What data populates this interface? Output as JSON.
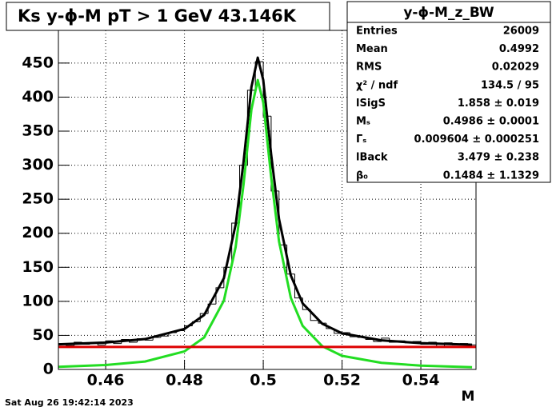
{
  "chart_data": {
    "type": "histogram",
    "title": "Ks y-ϕ-M pT > 1 GeV   43.146K",
    "x_label": "M",
    "timestamp": "Sat Aug 26 19:42:14 2023",
    "xlim": [
      0.448,
      0.554
    ],
    "ylim": [
      0,
      498
    ],
    "xticks": [
      0.46,
      0.48,
      0.5,
      0.52,
      0.54
    ],
    "yticks": [
      0,
      50,
      100,
      150,
      200,
      250,
      300,
      350,
      400,
      450
    ],
    "grid": true,
    "color": "#000000",
    "bins": [
      0.448,
      0.45,
      0.452,
      0.454,
      0.456,
      0.458,
      0.46,
      0.462,
      0.464,
      0.466,
      0.468,
      0.47,
      0.472,
      0.474,
      0.476,
      0.478,
      0.48,
      0.482,
      0.484,
      0.486,
      0.488,
      0.49,
      0.492,
      0.494,
      0.496,
      0.498,
      0.5,
      0.502,
      0.504,
      0.506,
      0.508,
      0.51,
      0.512,
      0.514,
      0.516,
      0.518,
      0.52,
      0.522,
      0.524,
      0.526,
      0.528,
      0.53,
      0.532,
      0.534,
      0.536,
      0.538,
      0.54,
      0.542,
      0.544,
      0.546,
      0.548,
      0.55,
      0.552,
      0.554
    ],
    "values": [
      38,
      35,
      40,
      37,
      39,
      36,
      42,
      38,
      44,
      40,
      45,
      43,
      47,
      49,
      54,
      57,
      64,
      70,
      82,
      96,
      120,
      150,
      215,
      300,
      410,
      452,
      372,
      262,
      183,
      140,
      105,
      88,
      72,
      68,
      60,
      53,
      54,
      48,
      47,
      44,
      41,
      46,
      40,
      42,
      39,
      41,
      37,
      40,
      33,
      39,
      36,
      38,
      36
    ],
    "curves": [
      {
        "name": "total",
        "color": "#000000",
        "x": [
          0.448,
          0.46,
          0.47,
          0.48,
          0.485,
          0.49,
          0.493,
          0.495,
          0.497,
          0.4986,
          0.5,
          0.502,
          0.504,
          0.507,
          0.51,
          0.515,
          0.52,
          0.53,
          0.54,
          0.553
        ],
        "values": [
          36.8,
          39.5,
          44.6,
          59.5,
          80,
          134,
          213,
          305,
          415,
          458,
          425,
          316,
          221,
          138,
          97,
          67,
          53,
          42.7,
          38.6,
          36.3
        ]
      },
      {
        "name": "signal",
        "color": "#22dd22",
        "x": [
          0.448,
          0.46,
          0.47,
          0.48,
          0.485,
          0.49,
          0.493,
          0.495,
          0.497,
          0.4986,
          0.5,
          0.502,
          0.504,
          0.507,
          0.51,
          0.515,
          0.52,
          0.53,
          0.54,
          0.553
        ],
        "values": [
          3.8,
          6.5,
          11.6,
          26.5,
          47,
          101,
          180,
          272,
          382,
          425,
          392,
          283,
          188,
          105,
          64,
          34,
          20,
          9.7,
          5.6,
          3.3
        ]
      },
      {
        "name": "background",
        "color": "#dd0000",
        "x": [
          0.448,
          0.554
        ],
        "values": [
          33,
          33
        ]
      }
    ]
  },
  "stats": {
    "title": "y-ϕ-M_z_BW",
    "rows": [
      [
        "Entries",
        "26009"
      ],
      [
        "Mean",
        "0.4992"
      ],
      [
        "RMS",
        "0.02029"
      ],
      [
        "χ² / ndf",
        "134.5 / 95"
      ],
      [
        "lSigS",
        "1.858 ± 0.019"
      ],
      [
        "Mₛ",
        "0.4986 ± 0.0001"
      ],
      [
        "Γₛ",
        "0.009604 ± 0.000251"
      ],
      [
        "lBack",
        "3.479 ± 0.238"
      ],
      [
        "β₀",
        "0.1484 ± 1.1329"
      ]
    ]
  }
}
